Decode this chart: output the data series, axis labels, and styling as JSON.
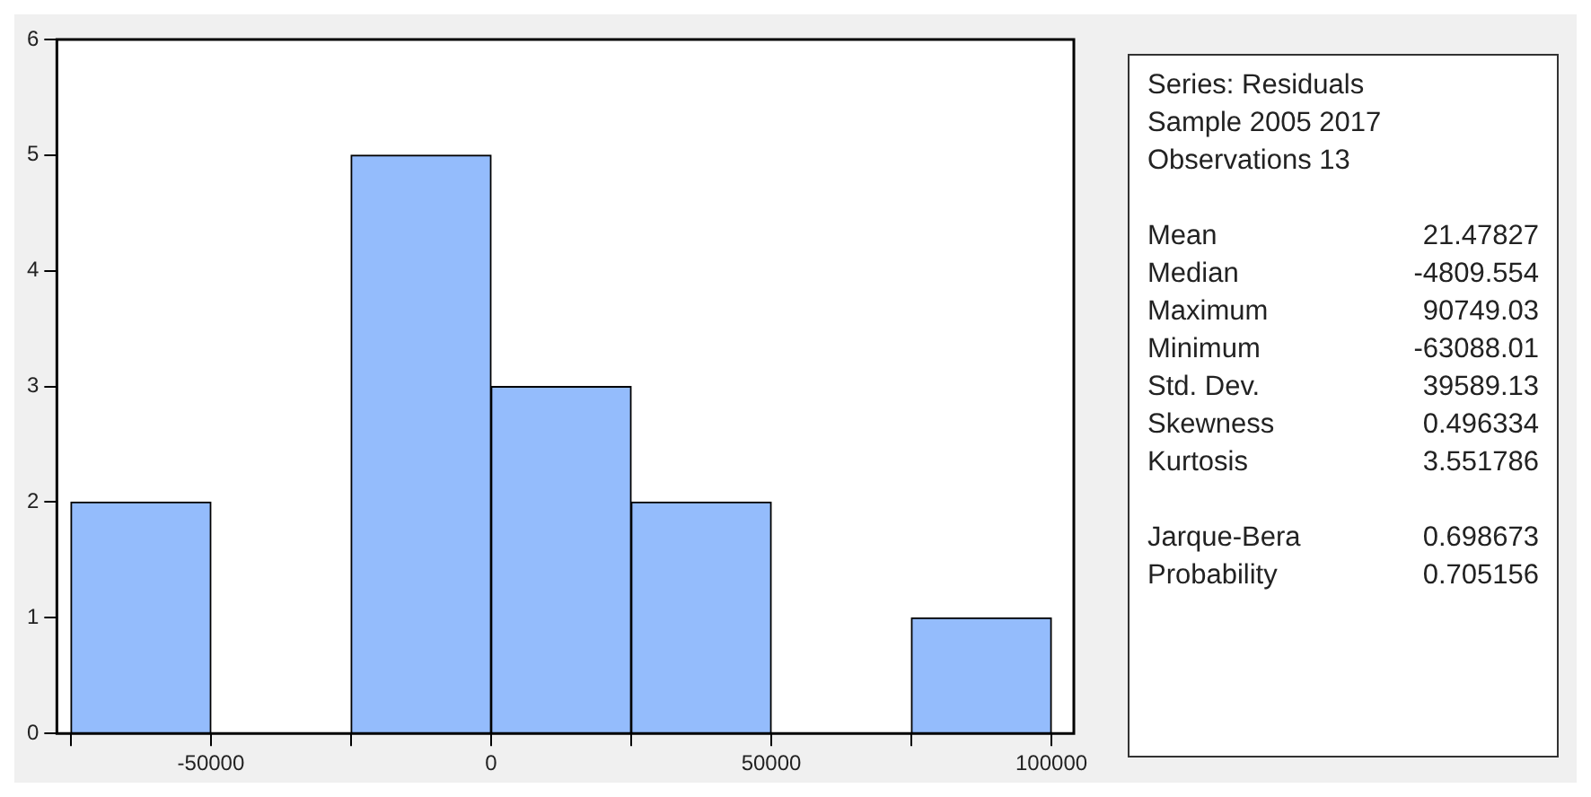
{
  "chart_data": {
    "type": "histogram",
    "bins": [
      -75000,
      -50000,
      -25000,
      0,
      25000,
      50000,
      75000,
      100000
    ],
    "values": [
      2,
      0,
      5,
      3,
      2,
      0,
      1
    ],
    "color": "#94bcfc",
    "xlim": [
      -77500,
      104000
    ],
    "xticks": [
      {
        "value": -75000,
        "label": null
      },
      -50000,
      {
        "value": -25000,
        "label": null
      },
      0,
      {
        "value": 25000,
        "label": null
      },
      50000,
      {
        "value": 75000,
        "label": null
      },
      100000
    ],
    "ylim": [
      0,
      6
    ],
    "yticks": [
      0,
      1,
      2,
      3,
      4,
      5,
      6
    ],
    "legend": false,
    "annotations": [
      "Series: Residuals",
      "Sample 2005 2017",
      "Observations 13",
      "Mean\t21.47827",
      "Median\t-4809.554",
      "Maximum\t90749.03",
      "Minimum\t-63088.01",
      "Std. Dev.\t39589.13",
      "Skewness\t0.496334",
      "Kurtosis\t3.551786",
      "Jarque-Bera\t0.698673",
      "Probability\t0.705156"
    ]
  }
}
